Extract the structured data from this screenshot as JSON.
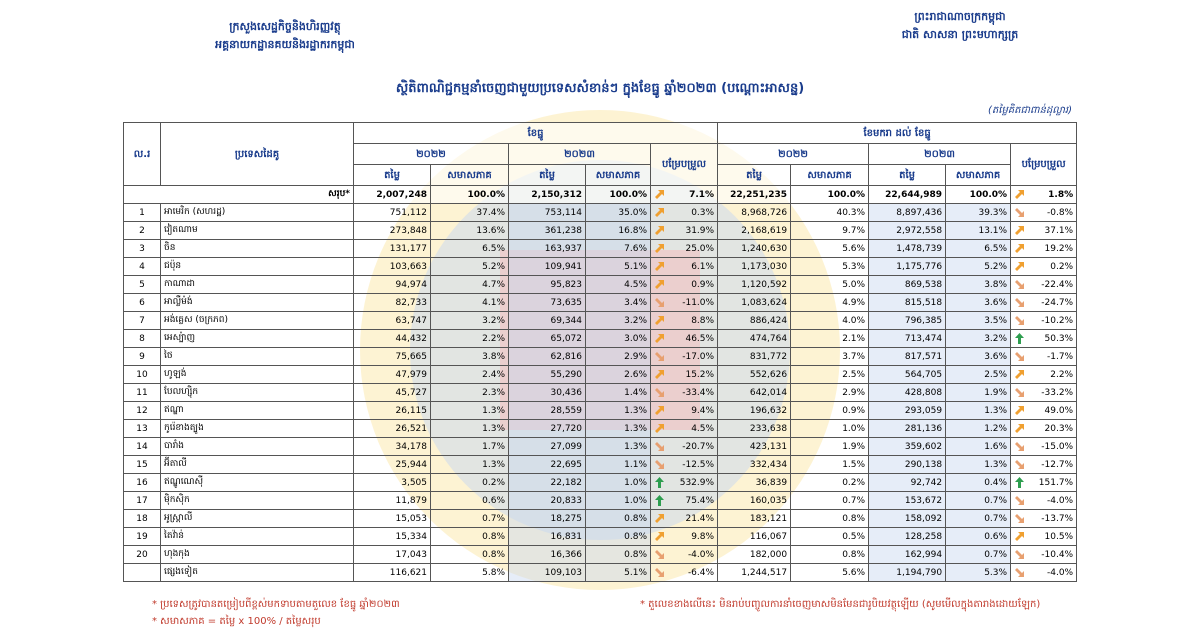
{
  "header": {
    "ministry": "ក្រសួងសេដ្ឋកិច្ចនិងហិរញ្ញវត្ថុ",
    "department": "អគ្គនាយកដ្ឋានគយនិងរដ្ឋាករកម្ពុជា",
    "kingdom": "ព្រះរាជាណាចក្រកម្ពុជា",
    "motto": "ជាតិ សាសនា ព្រះមហាក្សត្រ",
    "title": "ស្ថិតិពាណិជ្ជកម្មនាំចេញជាមួយប្រទេសសំខាន់ៗ ក្នុងខែធ្នូ ឆ្នាំ២០២៣ (បណ្ដោះអាសន្ន)",
    "unit": "(តម្លៃគិតជាពាន់ដុល្លារ)"
  },
  "table": {
    "col_no": "ល.រ",
    "col_country": "ប្រទេសដៃគូ",
    "period_month": "ខែធ្នូ",
    "period_ytd": "ខែមករា ដល់ ខែធ្នូ",
    "year_prev": "២០២២",
    "year_cur": "២០២៣",
    "change": "បម្រែបម្រួល",
    "value": "តម្លៃ",
    "share": "សមាសភាគ",
    "total": [
      "សរុប*",
      "2,007,248",
      "100.0%",
      "2,150,312",
      "100.0%",
      "7.1%",
      "22,251,235",
      "100.0%",
      "22,644,989",
      "100.0%",
      "1.8%"
    ],
    "rows": [
      [
        "1",
        "អាមេរិក (សហរដ្ឋ)",
        "751,112",
        "37.4%",
        "753,114",
        "35.0%",
        "0.3%",
        "8,968,726",
        "40.3%",
        "8,897,436",
        "39.3%",
        "-0.8%"
      ],
      [
        "2",
        "វៀតណាម",
        "273,848",
        "13.6%",
        "361,238",
        "16.8%",
        "31.9%",
        "2,168,619",
        "9.7%",
        "2,972,558",
        "13.1%",
        "37.1%"
      ],
      [
        "3",
        "ចិន",
        "131,177",
        "6.5%",
        "163,937",
        "7.6%",
        "25.0%",
        "1,240,630",
        "5.6%",
        "1,478,739",
        "6.5%",
        "19.2%"
      ],
      [
        "4",
        "ជប៉ុន",
        "103,663",
        "5.2%",
        "109,941",
        "5.1%",
        "6.1%",
        "1,173,030",
        "5.3%",
        "1,175,776",
        "5.2%",
        "0.2%"
      ],
      [
        "5",
        "កាណាដា",
        "94,974",
        "4.7%",
        "95,823",
        "4.5%",
        "0.9%",
        "1,120,592",
        "5.0%",
        "869,538",
        "3.8%",
        "-22.4%"
      ],
      [
        "6",
        "អាល្លឺម៉ង់",
        "82,733",
        "4.1%",
        "73,635",
        "3.4%",
        "-11.0%",
        "1,083,624",
        "4.9%",
        "815,518",
        "3.6%",
        "-24.7%"
      ],
      [
        "7",
        "អង់គ្លេស (ចក្រភព)",
        "63,747",
        "3.2%",
        "69,344",
        "3.2%",
        "8.8%",
        "886,424",
        "4.0%",
        "796,385",
        "3.5%",
        "-10.2%"
      ],
      [
        "8",
        "អេស្ប៉ាញ",
        "44,432",
        "2.2%",
        "65,072",
        "3.0%",
        "46.5%",
        "474,764",
        "2.1%",
        "713,474",
        "3.2%",
        "50.3%"
      ],
      [
        "9",
        "ថៃ",
        "75,665",
        "3.8%",
        "62,816",
        "2.9%",
        "-17.0%",
        "831,772",
        "3.7%",
        "817,571",
        "3.6%",
        "-1.7%"
      ],
      [
        "10",
        "ហូឡង់",
        "47,979",
        "2.4%",
        "55,290",
        "2.6%",
        "15.2%",
        "552,626",
        "2.5%",
        "564,705",
        "2.5%",
        "2.2%"
      ],
      [
        "11",
        "បែលហ្ស៊ិក",
        "45,727",
        "2.3%",
        "30,436",
        "1.4%",
        "-33.4%",
        "642,014",
        "2.9%",
        "428,808",
        "1.9%",
        "-33.2%"
      ],
      [
        "12",
        "ឥណ្ឌា",
        "26,115",
        "1.3%",
        "28,559",
        "1.3%",
        "9.4%",
        "196,632",
        "0.9%",
        "293,059",
        "1.3%",
        "49.0%"
      ],
      [
        "13",
        "កូរ៉េខាងត្បូង",
        "26,521",
        "1.3%",
        "27,720",
        "1.3%",
        "4.5%",
        "233,638",
        "1.0%",
        "281,136",
        "1.2%",
        "20.3%"
      ],
      [
        "14",
        "បារាំង",
        "34,178",
        "1.7%",
        "27,099",
        "1.3%",
        "-20.7%",
        "423,131",
        "1.9%",
        "359,602",
        "1.6%",
        "-15.0%"
      ],
      [
        "15",
        "អ៊ីតាលី",
        "25,944",
        "1.3%",
        "22,695",
        "1.1%",
        "-12.5%",
        "332,434",
        "1.5%",
        "290,138",
        "1.3%",
        "-12.7%"
      ],
      [
        "16",
        "ឥណ្ឌូណេស៊ី",
        "3,505",
        "0.2%",
        "22,182",
        "1.0%",
        "532.9%",
        "36,839",
        "0.2%",
        "92,742",
        "0.4%",
        "151.7%"
      ],
      [
        "17",
        "ម៉ិកស៊ិក",
        "11,879",
        "0.6%",
        "20,833",
        "1.0%",
        "75.4%",
        "160,035",
        "0.7%",
        "153,672",
        "0.7%",
        "-4.0%"
      ],
      [
        "18",
        "អូស្ត្រាលី",
        "15,053",
        "0.7%",
        "18,275",
        "0.8%",
        "21.4%",
        "183,121",
        "0.8%",
        "158,092",
        "0.7%",
        "-13.7%"
      ],
      [
        "19",
        "តៃវ៉ាន់",
        "15,334",
        "0.8%",
        "16,831",
        "0.8%",
        "9.8%",
        "116,067",
        "0.5%",
        "128,258",
        "0.6%",
        "10.5%"
      ],
      [
        "20",
        "ហុងកុង",
        "17,043",
        "0.8%",
        "16,366",
        "0.8%",
        "-4.0%",
        "182,000",
        "0.8%",
        "162,994",
        "0.7%",
        "-10.4%"
      ],
      [
        "",
        "ផ្សេងទៀត",
        "116,621",
        "5.8%",
        "109,103",
        "5.1%",
        "-6.4%",
        "1,244,517",
        "5.6%",
        "1,194,790",
        "5.3%",
        "-4.0%"
      ]
    ]
  },
  "notes": [
    "* ប្រទេសត្រូវបានតម្រៀបពីខ្ពស់មកទាបតាមតួលេខ ខែធ្នូ ឆ្នាំ២០២៣",
    "* តួលេខខាងលើនេះ មិនរាប់បញ្ចូលការនាំចេញមាសមិនមែនជារូបិយវត្ថុឡើយ (សូមមើលក្នុងតារាងដោយឡែក)",
    "* សមាសភាគ = តម្លៃ x 100% / តម្លៃសរុប"
  ]
}
